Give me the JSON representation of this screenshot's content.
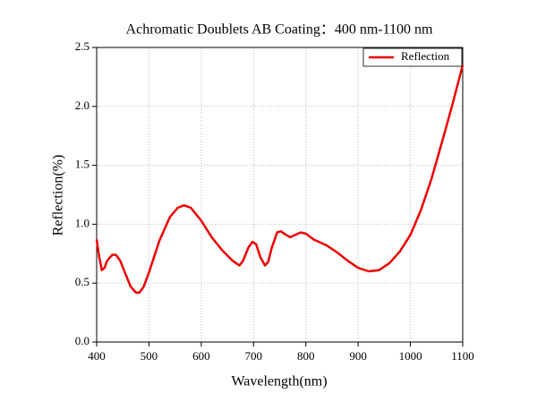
{
  "chart_data": {
    "type": "line",
    "title": "Achromatic Doublets AB Coating：400 nm-1100 nm",
    "x_label": "Wavelength(nm)",
    "y_label": "Reflection(%)",
    "x": [
      400,
      405,
      410,
      415,
      420,
      430,
      437,
      445,
      455,
      465,
      475,
      482,
      490,
      500,
      520,
      540,
      555,
      567,
      580,
      600,
      620,
      640,
      660,
      673,
      680,
      690,
      698,
      705,
      713,
      722,
      728,
      735,
      745,
      752,
      762,
      770,
      780,
      790,
      800,
      815,
      840,
      860,
      880,
      900,
      920,
      940,
      960,
      980,
      1000,
      1020,
      1040,
      1060,
      1080,
      1100
    ],
    "series": [
      {
        "name": "Reflection",
        "color": "#ee0000",
        "values": [
          0.87,
          0.72,
          0.61,
          0.63,
          0.69,
          0.74,
          0.74,
          0.69,
          0.58,
          0.47,
          0.42,
          0.42,
          0.47,
          0.59,
          0.86,
          1.06,
          1.14,
          1.16,
          1.14,
          1.03,
          0.89,
          0.78,
          0.69,
          0.65,
          0.69,
          0.8,
          0.85,
          0.83,
          0.72,
          0.65,
          0.68,
          0.8,
          0.93,
          0.94,
          0.91,
          0.89,
          0.91,
          0.93,
          0.92,
          0.87,
          0.82,
          0.76,
          0.69,
          0.63,
          0.6,
          0.61,
          0.67,
          0.77,
          0.91,
          1.12,
          1.38,
          1.69,
          2.01,
          2.35
        ]
      }
    ],
    "xlim": [
      400,
      1100
    ],
    "xticks": [
      400,
      500,
      600,
      700,
      800,
      900,
      1000,
      1100
    ],
    "ylim": [
      0,
      2.5
    ],
    "yticks": [
      {
        "value": 0,
        "label": "0.0"
      },
      0.5,
      {
        "value": 1,
        "label": "1.0"
      },
      1.5,
      {
        "value": 2,
        "label": "2.0"
      },
      2.5
    ],
    "grid": true,
    "legend": "upper right"
  }
}
